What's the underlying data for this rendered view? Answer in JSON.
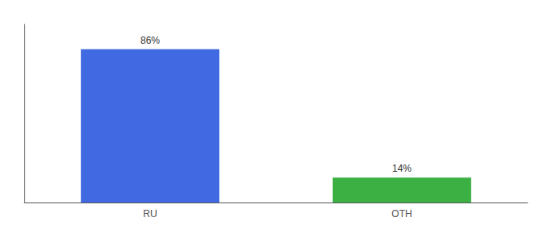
{
  "chart_data": {
    "type": "bar",
    "categories": [
      "RU",
      "OTH"
    ],
    "values": [
      86,
      14
    ],
    "value_labels": [
      "86%",
      "14%"
    ],
    "colors": [
      "#4169e1",
      "#3cb043"
    ],
    "ylim": [
      0,
      100
    ],
    "grid": false,
    "data_labels": true,
    "tick_labels": "x"
  }
}
